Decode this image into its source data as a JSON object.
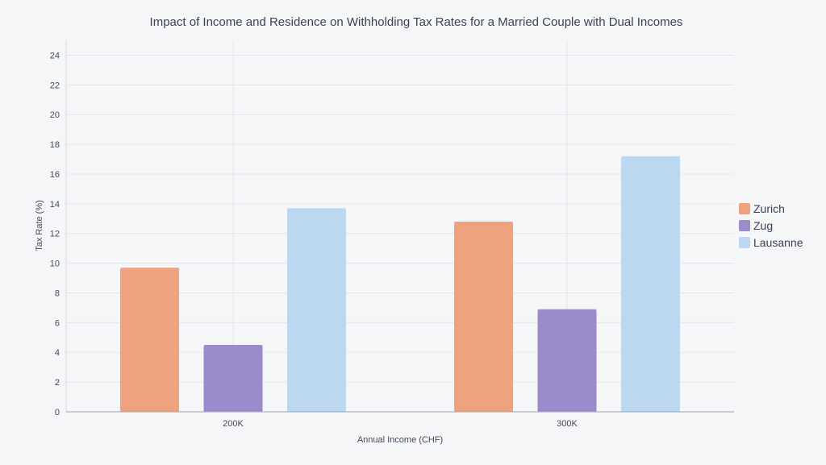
{
  "chart_data": {
    "type": "bar",
    "title": "Impact of Income and Residence on Withholding Tax Rates for a Married Couple with Dual Incomes",
    "xlabel": "Annual Income (CHF)",
    "ylabel": "Tax Rate (%)",
    "categories": [
      "200K",
      "300K"
    ],
    "series": [
      {
        "name": "Zurich",
        "color": "#eea37e",
        "values": [
          9.7,
          12.8
        ]
      },
      {
        "name": "Zug",
        "color": "#9c8bca",
        "values": [
          4.5,
          6.9
        ]
      },
      {
        "name": "Lausanne",
        "color": "#bbd8f0",
        "values": [
          13.7,
          17.2
        ]
      }
    ],
    "ylim": [
      0,
      25
    ],
    "yticks": [
      0,
      2,
      4,
      6,
      8,
      10,
      12,
      14,
      16,
      18,
      20,
      22,
      24
    ],
    "grid": true,
    "legend_position": "right"
  }
}
